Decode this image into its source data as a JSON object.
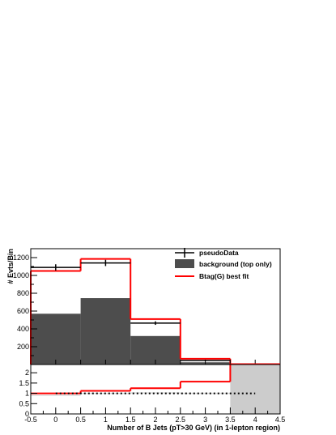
{
  "chart_data": {
    "type": "bar",
    "title": "",
    "xlabel": "Number of B Jets (pT>30 GeV) (in 1-lepton region)",
    "ylabel": "# Evts/Bin",
    "bin_edges": [
      -0.5,
      0.5,
      1.5,
      2.5,
      3.5,
      4.5
    ],
    "x_ticks": [
      "-0.5",
      "0",
      "0.5",
      "1",
      "1.5",
      "2",
      "2.5",
      "3",
      "3.5",
      "4",
      "4.5"
    ],
    "ylim": [
      0,
      1300
    ],
    "y_ticks": [
      "200",
      "400",
      "600",
      "800",
      "1000",
      "1200"
    ],
    "series": [
      {
        "name": "pseudoData",
        "kind": "points",
        "x": [
          0,
          1,
          2,
          3,
          4
        ],
        "values": [
          1090,
          1140,
          465,
          45,
          5
        ],
        "errors": [
          35,
          35,
          20,
          8,
          2
        ],
        "color": "#000000"
      },
      {
        "name": "background (top only)",
        "kind": "filled-histogram",
        "values": [
          570,
          745,
          320,
          25,
          2
        ],
        "color": "#4d4d4d"
      },
      {
        "name": "Btag(G) best fit",
        "kind": "line-histogram",
        "values": [
          1050,
          1185,
          510,
          65,
          5
        ],
        "color": "#ff0000"
      }
    ],
    "legend": {
      "position": "top-right"
    },
    "ratio_panel": {
      "ylim": [
        0,
        2.4
      ],
      "y_ticks": [
        "0",
        "0.5",
        "1",
        "1.5",
        "2"
      ],
      "dotted_reference": {
        "y": 1.0,
        "x_from": 0,
        "x_to": 4
      },
      "band_values": [
        0.9,
        1.0,
        1.02,
        1.0
      ],
      "red_ratio": [
        1.0,
        1.12,
        1.25,
        1.57,
        2.42
      ],
      "gray_region": {
        "x_from": 3.5,
        "x_to": 4.5
      }
    }
  }
}
